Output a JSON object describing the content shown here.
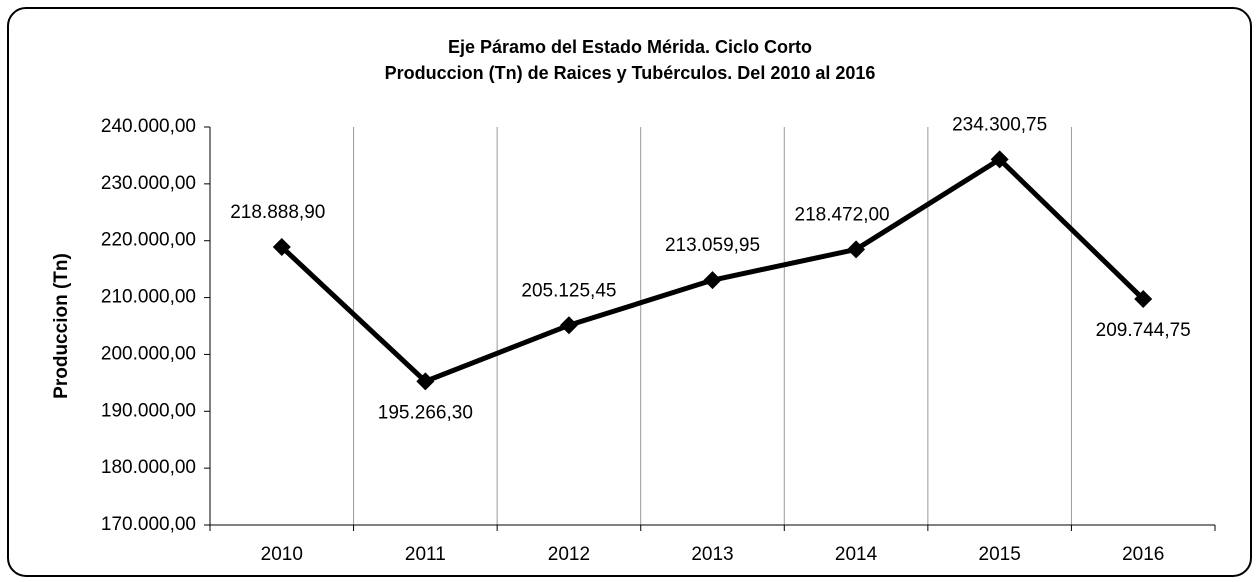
{
  "chart_data": {
    "type": "line",
    "title": "Eje Páramo del Estado Mérida. Ciclo Corto",
    "subtitle": "Produccion (Tn) de Raices y Tubérculos. Del 2010 al 2016",
    "y_label": "Produccion (Tn)",
    "categories": [
      "2010",
      "2011",
      "2012",
      "2013",
      "2014",
      "2015",
      "2016"
    ],
    "values": [
      218888.9,
      195266.3,
      205125.45,
      213059.95,
      218472.0,
      234300.75,
      209744.75
    ],
    "value_labels": [
      "218.888,90",
      "195.266,30",
      "205.125,45",
      "213.059,95",
      "218.472,00",
      "234.300,75",
      "209.744,75"
    ],
    "color": "#000000",
    "ylim": [
      170000,
      240000
    ],
    "yticks": [
      {
        "value": 170000,
        "label": "170.000,00"
      },
      {
        "value": 180000,
        "label": "180.000,00"
      },
      {
        "value": 190000,
        "label": "190.000,00"
      },
      {
        "value": 200000,
        "label": "200.000,00"
      },
      {
        "value": 210000,
        "label": "210.000,00"
      },
      {
        "value": 220000,
        "label": "220.000,00"
      },
      {
        "value": 230000,
        "label": "230.000,00"
      },
      {
        "value": 240000,
        "label": "240.000,00"
      }
    ],
    "grid": "vertical"
  }
}
